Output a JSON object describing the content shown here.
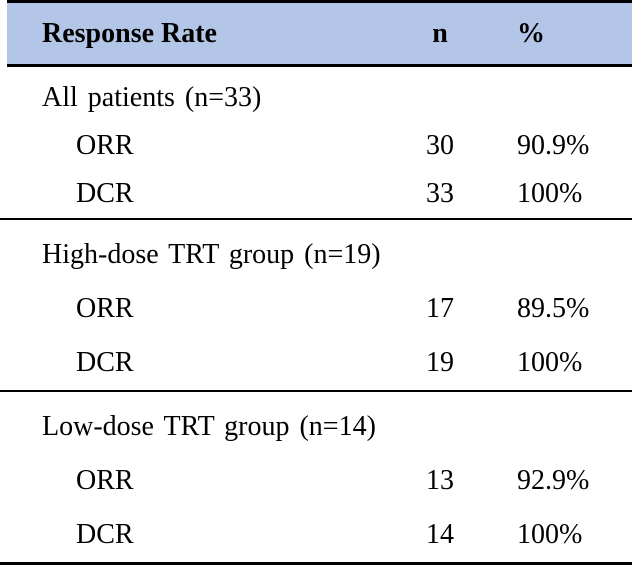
{
  "table": {
    "header": {
      "col1": "Response Rate",
      "col2": "n",
      "col3": "%"
    },
    "sections": [
      {
        "title": "All patients (n=33)",
        "rows": [
          {
            "label": "ORR",
            "n": "30",
            "pct": "90.9%"
          },
          {
            "label": "DCR",
            "n": "33",
            "pct": "100%"
          }
        ]
      },
      {
        "title": "High-dose TRT group (n=19)",
        "rows": [
          {
            "label": "ORR",
            "n": "17",
            "pct": "89.5%"
          },
          {
            "label": "DCR",
            "n": "19",
            "pct": "100%"
          }
        ]
      },
      {
        "title": "Low-dose TRT group (n=14)",
        "rows": [
          {
            "label": "ORR",
            "n": "13",
            "pct": "92.9%"
          },
          {
            "label": "DCR",
            "n": "14",
            "pct": "100%"
          }
        ]
      }
    ],
    "colors": {
      "header_bg": "#B4C6E7",
      "border": "#000000",
      "text": "#000000"
    }
  }
}
